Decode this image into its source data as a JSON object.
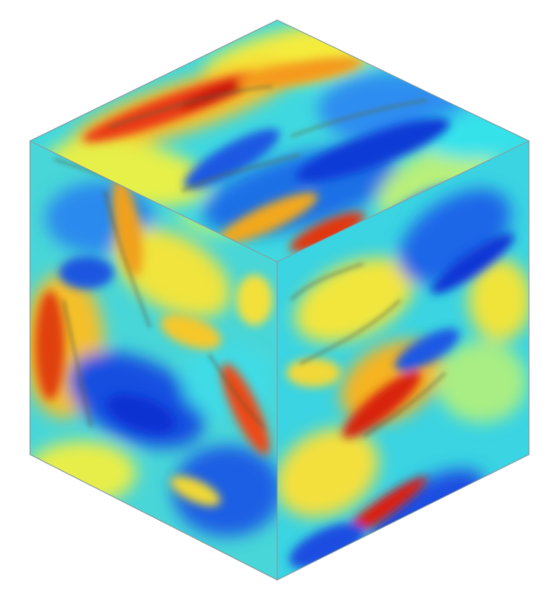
{
  "image": {
    "subject": "turbulence-field-cube",
    "palette": [
      "#0a2fd8",
      "#1e8cf0",
      "#38e6ee",
      "#9cf08c",
      "#f2f03a",
      "#f7b51c",
      "#ee3a12",
      "#c81008"
    ],
    "edge_color": "#8a9aa0"
  }
}
